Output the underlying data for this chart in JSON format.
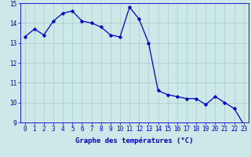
{
  "hours": [
    0,
    1,
    2,
    3,
    4,
    5,
    6,
    7,
    8,
    9,
    10,
    11,
    12,
    13,
    14,
    15,
    16,
    17,
    18,
    19,
    20,
    21,
    22,
    23
  ],
  "temperatures": [
    13.3,
    13.7,
    13.4,
    14.1,
    14.5,
    14.6,
    14.1,
    14.0,
    13.8,
    13.4,
    13.3,
    14.8,
    14.2,
    13.0,
    10.6,
    10.4,
    10.3,
    10.2,
    10.2,
    9.9,
    10.3,
    10.0,
    9.7,
    8.9
  ],
  "xlabel": "Graphe des températures (°C)",
  "ylim": [
    9,
    15
  ],
  "xlim_min": -0.5,
  "xlim_max": 23.5,
  "yticks": [
    9,
    10,
    11,
    12,
    13,
    14,
    15
  ],
  "xticks": [
    0,
    1,
    2,
    3,
    4,
    5,
    6,
    7,
    8,
    9,
    10,
    11,
    12,
    13,
    14,
    15,
    16,
    17,
    18,
    19,
    20,
    21,
    22,
    23
  ],
  "line_color": "#0000cc",
  "marker": "D",
  "marker_size": 1.8,
  "bg_color": "#cce8e8",
  "plot_bg_color": "#cce8e8",
  "grid_color": "#aacccc",
  "xlabel_color": "#0000cc",
  "tick_label_color": "#0000cc",
  "spine_color": "#0000cc",
  "xlabel_fontsize": 6.5,
  "tick_fontsize": 5.5,
  "line_width": 0.9,
  "linestyle": "-"
}
